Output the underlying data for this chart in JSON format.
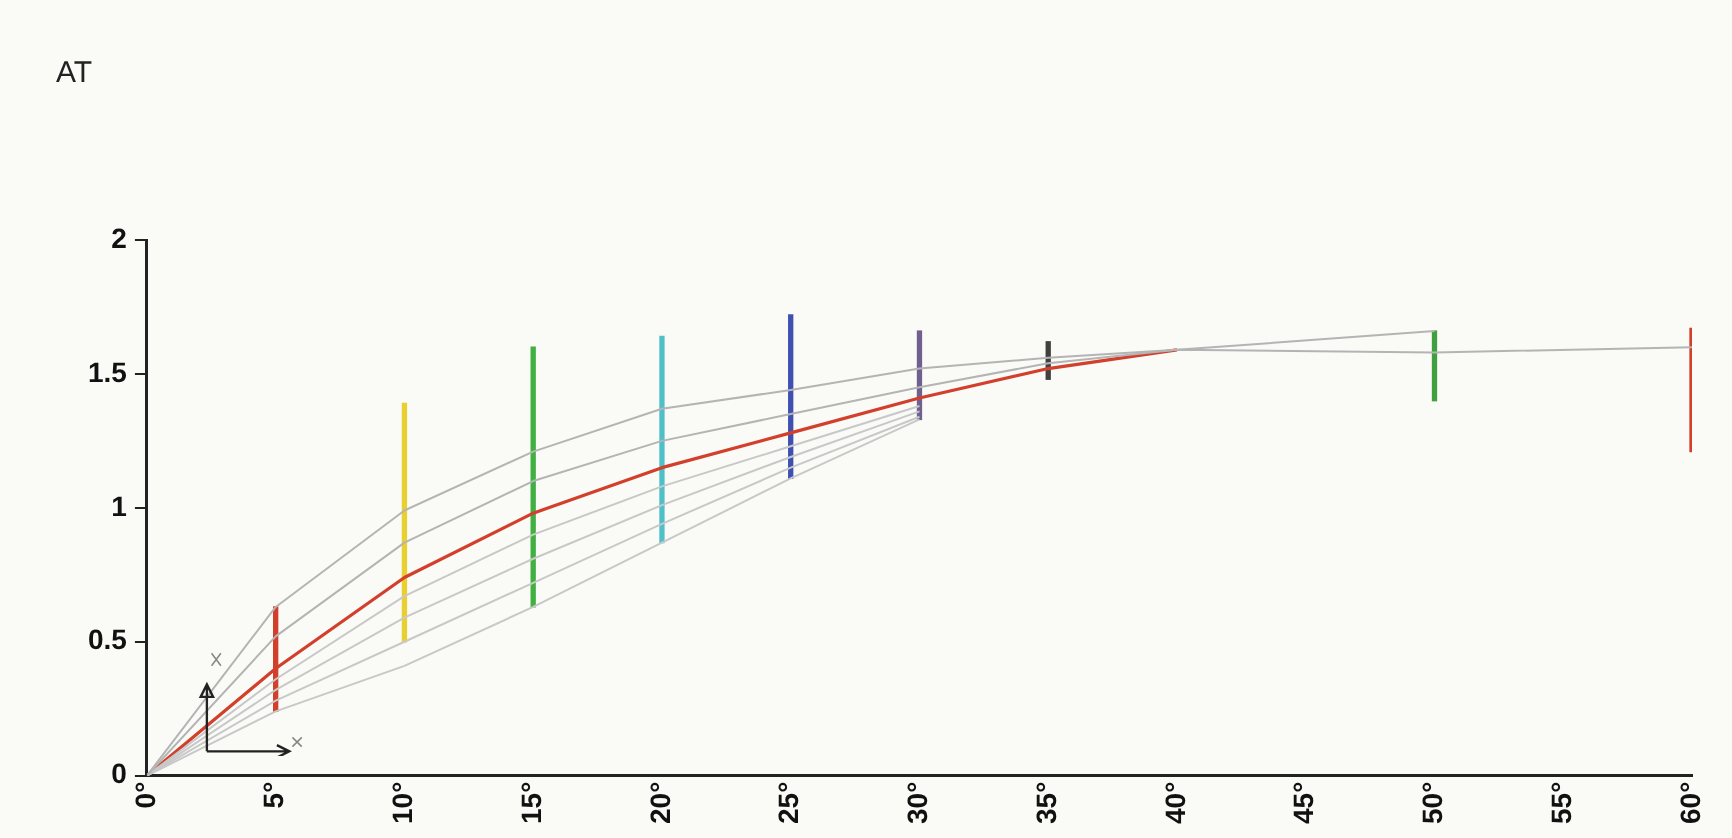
{
  "chart_data": {
    "type": "line",
    "ylabel": "AT",
    "marker": "none",
    "legend": false,
    "grid": false,
    "xlim": [
      0,
      60
    ],
    "xticks": [
      {
        "value": 0,
        "label": "0°"
      },
      {
        "value": 5,
        "label": "5°"
      },
      {
        "value": 10,
        "label": "10°"
      },
      {
        "value": 15,
        "label": "15°"
      },
      {
        "value": 20,
        "label": "20°"
      },
      {
        "value": 25,
        "label": "25°"
      },
      {
        "value": 30,
        "label": "30°"
      },
      {
        "value": 35,
        "label": "35°"
      },
      {
        "value": 40,
        "label": "40°"
      },
      {
        "value": 45,
        "label": "45°"
      },
      {
        "value": 50,
        "label": "50°"
      },
      {
        "value": 55,
        "label": "55°"
      },
      {
        "value": 60,
        "label": "60°"
      }
    ],
    "ylim": [
      0,
      2
    ],
    "yticks": [
      0,
      0.5,
      1,
      1.5,
      2
    ],
    "series": [
      {
        "color": "#b4b4b4",
        "x": [
          0,
          5,
          10,
          15,
          20,
          25,
          30,
          35,
          40,
          50
        ],
        "values": [
          0,
          0.63,
          0.99,
          1.21,
          1.37,
          1.44,
          1.52,
          1.56,
          1.59,
          1.66
        ]
      },
      {
        "color": "#b4b4b4",
        "x": [
          0,
          5,
          10,
          15,
          20,
          25,
          30,
          35,
          40,
          50,
          60
        ],
        "values": [
          0,
          0.52,
          0.87,
          1.1,
          1.25,
          1.35,
          1.45,
          1.54,
          1.59,
          1.58,
          1.6
        ]
      },
      {
        "color": "#c8c8c8",
        "x": [
          0,
          5,
          10,
          15,
          20,
          25,
          30
        ],
        "values": [
          0,
          0.36,
          0.67,
          0.9,
          1.08,
          1.23,
          1.38
        ]
      },
      {
        "color": "#c8c8c8",
        "x": [
          0,
          5,
          10,
          15,
          20,
          25,
          30
        ],
        "values": [
          0,
          0.32,
          0.59,
          0.81,
          1.01,
          1.19,
          1.36
        ]
      },
      {
        "color": "#c8c8c8",
        "x": [
          0,
          5,
          10,
          15,
          20,
          25,
          30
        ],
        "values": [
          0,
          0.28,
          0.5,
          0.72,
          0.94,
          1.15,
          1.34
        ]
      },
      {
        "color": "#c8c8c8",
        "x": [
          0,
          5,
          10,
          15,
          20,
          25,
          30
        ],
        "values": [
          0,
          0.24,
          0.41,
          0.63,
          0.87,
          1.11,
          1.33
        ]
      },
      {
        "color": "#d2402c",
        "x": [
          0,
          5,
          10,
          15,
          20,
          25,
          30,
          35,
          40
        ],
        "values": [
          0,
          0.4,
          0.74,
          0.98,
          1.15,
          1.28,
          1.41,
          1.52,
          1.59
        ]
      },
      {
        "type": "bar",
        "x": [
          5,
          10,
          15,
          20,
          25,
          30,
          35,
          50,
          60
        ],
        "base": [
          0.24,
          0.5,
          0.63,
          0.87,
          1.11,
          1.33,
          1.48,
          1.4,
          1.21
        ],
        "values": [
          0.39,
          0.89,
          0.97,
          0.77,
          0.61,
          0.33,
          0.14,
          0.26,
          0.46
        ],
        "colors": [
          "#d2402c",
          "#e8d030",
          "#40b040",
          "#50c0c8",
          "#4050b0",
          "#706090",
          "#404040",
          "#40a040",
          "#d2402c"
        ]
      }
    ]
  }
}
